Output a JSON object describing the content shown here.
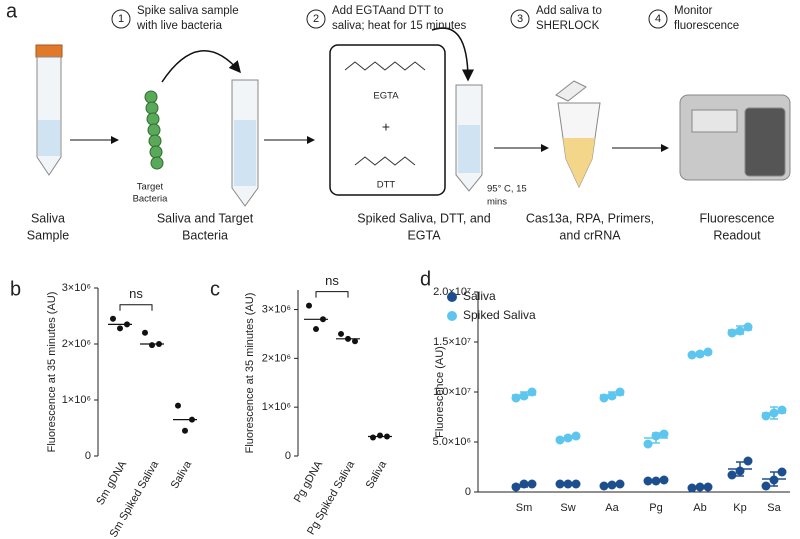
{
  "panel_a": {
    "letter": "a",
    "steps": [
      {
        "number": "1",
        "text": [
          "Spike saliva sample",
          "with live bacteria"
        ]
      },
      {
        "number": "2",
        "text": [
          "Add EGTAand DTT to",
          "saliva; heat for 15 minutes"
        ]
      },
      {
        "number": "3",
        "text": [
          "Add saliva to",
          "SHERLOCK"
        ]
      },
      {
        "number": "4",
        "text": [
          "Monitor",
          "fluorescence"
        ]
      }
    ],
    "labels": {
      "bacteria": [
        "Target",
        "Bacteria"
      ],
      "egta": "EGTA",
      "plus": "+",
      "dtt": "DTT",
      "heat": [
        "95° C, 15",
        "mins"
      ]
    },
    "captions": [
      [
        "Saliva",
        "Sample"
      ],
      [
        "Saliva and Target",
        "Bacteria"
      ],
      [
        "Spiked Saliva, DTT, and",
        "EGTA"
      ],
      [
        "Cas13a, RPA, Primers,",
        "and crRNA"
      ],
      [
        "Fluorescence",
        "Readout"
      ]
    ]
  },
  "chart_data": [
    {
      "type": "dot",
      "letter": "b",
      "y_label": "Fluorescence at 35 minutes (AU)",
      "categories": [
        "Sm gDNA",
        "Sm Spiked Saliva",
        "Saliva"
      ],
      "values": [
        2350000,
        2000000,
        650000
      ],
      "points": [
        [
          2450000,
          2350000,
          2280000
        ],
        [
          2200000,
          2000000,
          1980000
        ],
        [
          900000,
          650000,
          450000
        ]
      ],
      "color": "#111111",
      "ylim": [
        0,
        3000000
      ],
      "yticks": [
        0,
        {
          "value": 1000000,
          "label": "1×10⁶"
        },
        {
          "value": 2000000,
          "label": "2×10⁶"
        },
        {
          "value": 3000000,
          "label": "3×10⁶"
        }
      ],
      "annotation": "ns"
    },
    {
      "type": "dot",
      "letter": "c",
      "y_label": "Fluorescence at 35 minutes (AU)",
      "categories": [
        "Pg gDNA",
        "Pg Spiked Saliva",
        "Saliva"
      ],
      "values": [
        2800000,
        2400000,
        400000
      ],
      "points": [
        [
          3080000,
          2800000,
          2600000
        ],
        [
          2500000,
          2350000,
          2400000
        ],
        [
          380000,
          400000,
          420000
        ]
      ],
      "color": "#111111",
      "ylim": [
        0,
        3400000
      ],
      "yticks": [
        0,
        {
          "value": 1000000,
          "label": "1×10⁶"
        },
        {
          "value": 2000000,
          "label": "2×10⁶"
        },
        {
          "value": 3000000,
          "label": "3×10⁶"
        }
      ],
      "annotation": "ns"
    },
    {
      "type": "strip",
      "letter": "d",
      "y_label": "Fluorescence (AU)",
      "categories": [
        "Sm",
        "Sw",
        "Aa",
        "Pg",
        "Ab",
        "Kp",
        "Sa"
      ],
      "series": [
        {
          "name": "Saliva",
          "color": "#1d4f8f",
          "values": [
            700000,
            800000,
            700000,
            1100000,
            500000,
            2300000,
            1300000
          ],
          "errors": [
            200000,
            50000,
            100000,
            100000,
            100000,
            700000,
            700000
          ],
          "points": [
            [
              500000,
              800000,
              800000
            ],
            [
              800000,
              800000,
              800000
            ],
            [
              600000,
              700000,
              800000
            ],
            [
              1100000,
              1100000,
              1200000
            ],
            [
              400000,
              500000,
              500000
            ],
            [
              1700000,
              2100000,
              3100000
            ],
            [
              600000,
              1200000,
              2000000
            ]
          ]
        },
        {
          "name": "Spiked Saliva",
          "color": "#5cc6ee",
          "values": [
            9700000,
            5400000,
            9700000,
            5400000,
            13800000,
            16200000,
            7900000
          ],
          "errors": [
            300000,
            200000,
            300000,
            500000,
            200000,
            400000,
            600000
          ],
          "points": [
            [
              9400000,
              9600000,
              10000000
            ],
            [
              5200000,
              5400000,
              5600000
            ],
            [
              9400000,
              9600000,
              10000000
            ],
            [
              4800000,
              5600000,
              5800000
            ],
            [
              13700000,
              13800000,
              14000000
            ],
            [
              15900000,
              16100000,
              16500000
            ],
            [
              7600000,
              7900000,
              8200000
            ]
          ]
        }
      ],
      "ylim": [
        0,
        20000000
      ],
      "yticks": [
        0,
        {
          "value": 5000000,
          "label": "5.0×10⁶"
        },
        {
          "value": 10000000,
          "label": "1.0×10⁷"
        },
        {
          "value": 15000000,
          "label": "1.5×10⁷"
        },
        {
          "value": 20000000,
          "label": "2.0×10⁷"
        }
      ],
      "legend": "top-left"
    }
  ]
}
